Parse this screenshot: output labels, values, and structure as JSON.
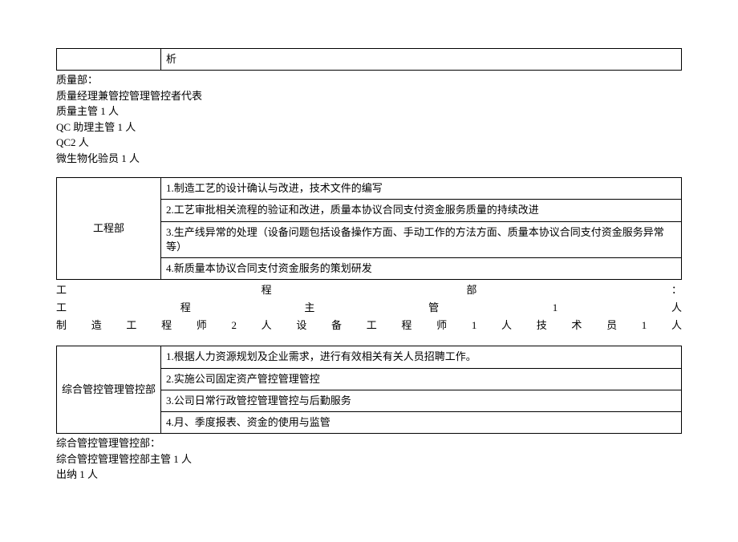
{
  "topTable": {
    "leftCell": "",
    "rightCell": "析"
  },
  "qualityDept": {
    "lines": [
      "质量部：",
      "质量经理兼管控管理管控者代表",
      "质量主管 1 人",
      "QC 助理主管 1 人",
      "QC2 人",
      "微生物化验员 1 人"
    ]
  },
  "engTable": {
    "label": "工程部",
    "rows": [
      "1.制造工艺的设计确认与改进，技术文件的编写",
      "2.工艺审批相关流程的验证和改进，质量本协议合同支付资金服务质量的持续改进",
      "3.生产线异常的处理（设备问题包括设备操作方面、手动工作的方法方面、质量本协议合同支付资金服务异常等）",
      "4.新质量本协议合同支付资金服务的策划研发"
    ]
  },
  "engDept": {
    "line1": "工程部：",
    "line2": "工程主管1人",
    "line3": "制造工程师2人设备工程师1人技术员1人"
  },
  "mgmtTable": {
    "label": "综合管控管理管控部",
    "rows": [
      "1.根据人力资源规划及企业需求，进行有效相关有关人员招聘工作。",
      "2.实施公司固定资产管控管理管控",
      "3.公司日常行政管控管理管控与后勤服务",
      "4.月、季度报表、资金的使用与监管"
    ]
  },
  "mgmtDept": {
    "lines": [
      "综合管控管理管控部：",
      "综合管控管理管控部主管 1 人",
      "出纳 1 人"
    ]
  }
}
